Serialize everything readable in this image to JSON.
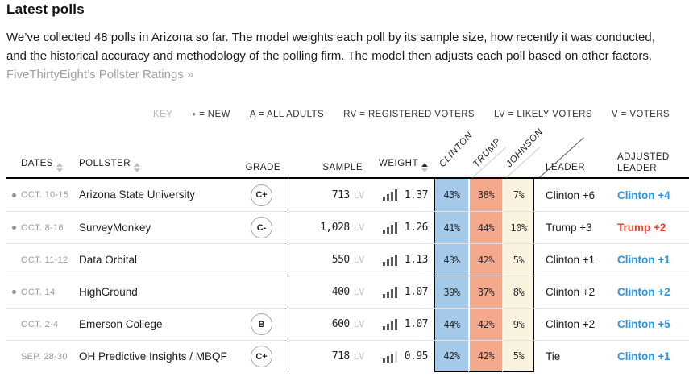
{
  "page": {
    "title": "Latest polls",
    "intro_text": "We’ve collected 48 polls in Arizona so far. The model weights each poll by its sample size, how recently it was conducted, and the historical accuracy and methodology of the polling firm. The model then adjusts each poll based on other factors.",
    "intro_link": "FiveThirtyEight’s Pollster Ratings »"
  },
  "key": {
    "label": "KEY",
    "items": [
      {
        "symbol": "●",
        "meaning": "NEW"
      },
      {
        "symbol": "A",
        "meaning": "ALL ADULTS"
      },
      {
        "symbol": "RV",
        "meaning": "REGISTERED VOTERS"
      },
      {
        "symbol": "LV",
        "meaning": "LIKELY VOTERS"
      },
      {
        "symbol": "V",
        "meaning": "VOTERS"
      }
    ]
  },
  "table": {
    "headers": {
      "dates": "DATES",
      "pollster": "POLLSTER",
      "grade": "GRADE",
      "sample": "SAMPLE",
      "weight": "WEIGHT",
      "leader": "LEADER",
      "adjusted_leader": "ADJUSTED LEADER"
    },
    "candidates": [
      "CLINTON",
      "TRUMP",
      "JOHNSON"
    ],
    "sort": {
      "active_column": "weight",
      "direction": "up"
    },
    "rows": [
      {
        "is_new": true,
        "dates": "OCT. 10-15",
        "pollster": "Arizona State University",
        "grade": "C+",
        "sample": "713",
        "sample_type": "LV",
        "weight": "1.37",
        "weight_bars": 4,
        "clinton": "43%",
        "trump": "38%",
        "johnson": "7%",
        "leader": "Clinton +6",
        "adjusted_leader": "Clinton +4",
        "adjusted_party": "clinton"
      },
      {
        "is_new": true,
        "dates": "OCT. 8-16",
        "pollster": "SurveyMonkey",
        "grade": "C-",
        "sample": "1,028",
        "sample_type": "LV",
        "weight": "1.26",
        "weight_bars": 4,
        "clinton": "41%",
        "trump": "44%",
        "johnson": "10%",
        "leader": "Trump +3",
        "adjusted_leader": "Trump +2",
        "adjusted_party": "trump"
      },
      {
        "is_new": false,
        "dates": "OCT. 11-12",
        "pollster": "Data Orbital",
        "grade": null,
        "sample": "550",
        "sample_type": "LV",
        "weight": "1.13",
        "weight_bars": 4,
        "clinton": "43%",
        "trump": "42%",
        "johnson": "5%",
        "leader": "Clinton +1",
        "adjusted_leader": "Clinton +1",
        "adjusted_party": "clinton"
      },
      {
        "is_new": true,
        "dates": "OCT. 14",
        "pollster": "HighGround",
        "grade": null,
        "sample": "400",
        "sample_type": "LV",
        "weight": "1.07",
        "weight_bars": 4,
        "clinton": "39%",
        "trump": "37%",
        "johnson": "8%",
        "leader": "Clinton +2",
        "adjusted_leader": "Clinton +2",
        "adjusted_party": "clinton"
      },
      {
        "is_new": false,
        "dates": "OCT. 2-4",
        "pollster": "Emerson College",
        "grade": "B",
        "sample": "600",
        "sample_type": "LV",
        "weight": "1.07",
        "weight_bars": 4,
        "clinton": "44%",
        "trump": "42%",
        "johnson": "9%",
        "leader": "Clinton +2",
        "adjusted_leader": "Clinton +5",
        "adjusted_party": "clinton"
      },
      {
        "is_new": false,
        "dates": "SEP. 28-30",
        "pollster": "OH Predictive Insights / MBQF",
        "grade": "C+",
        "sample": "718",
        "sample_type": "LV",
        "weight": "0.95",
        "weight_bars": 3,
        "clinton": "42%",
        "trump": "42%",
        "johnson": "5%",
        "leader": "Tie",
        "adjusted_leader": "Clinton +1",
        "adjusted_party": "clinton"
      }
    ]
  },
  "colors": {
    "clinton_cell": "#a4c9e9",
    "trump_cell": "#f5a98c",
    "johnson_cell": "#faf3df",
    "clinton_text": "#2994de",
    "trump_text": "#e8442d",
    "grade_green": "#8ab58c",
    "link_gray": "#a0a0a0"
  }
}
